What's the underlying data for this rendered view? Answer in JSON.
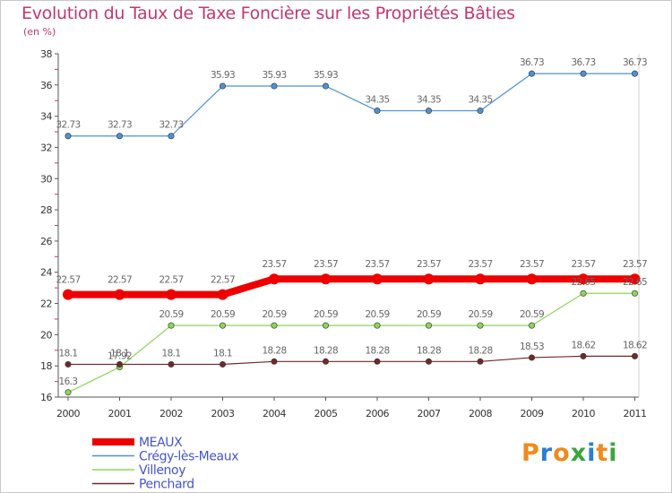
{
  "chart_data": {
    "type": "line",
    "title": "Evolution du Taux de Taxe Foncière sur les Propriétés Bâties",
    "subtitle": "(en %)",
    "x": [
      "2000",
      "2001",
      "2002",
      "2003",
      "2004",
      "2005",
      "2006",
      "2007",
      "2008",
      "2009",
      "2010",
      "2011"
    ],
    "ylim": [
      16,
      38
    ],
    "yticks": [
      16,
      18,
      20,
      22,
      24,
      26,
      28,
      30,
      32,
      34,
      36,
      38
    ],
    "grid": false,
    "legend": "bottom-left",
    "series": [
      {
        "name": "Crégy-lès-Meaux",
        "color": "#4f91d0",
        "labelColor": "#555555",
        "width": 1.2,
        "values": [
          32.73,
          32.73,
          32.73,
          35.93,
          35.93,
          35.93,
          34.35,
          34.35,
          34.35,
          36.73,
          36.73,
          36.73
        ],
        "labels": [
          "32.73",
          "32.73",
          "32.73",
          "35.93",
          "35.93",
          "35.93",
          "34.35",
          "34.35",
          "34.35",
          "36.73",
          "36.73",
          "36.73"
        ]
      },
      {
        "name": "Villenoy",
        "color": "#8cd45a",
        "labelColor": "#555555",
        "width": 1.2,
        "values": [
          16.3,
          17.92,
          20.59,
          20.59,
          20.59,
          20.59,
          20.59,
          20.59,
          20.59,
          20.59,
          22.65,
          22.65
        ],
        "labels": [
          "16.3",
          "17.92",
          "20.59",
          "20.59",
          "20.59",
          "20.59",
          "20.59",
          "20.59",
          "20.59",
          "20.59",
          "22.65",
          "22.65"
        ]
      },
      {
        "name": "Penchard",
        "color": "#6e2a2a",
        "labelColor": "#555555",
        "width": 1.2,
        "values": [
          18.1,
          18.1,
          18.1,
          18.1,
          18.28,
          18.28,
          18.28,
          18.28,
          18.28,
          18.53,
          18.62,
          18.62
        ],
        "labels": [
          "18.1",
          "18.1",
          "18.1",
          "18.1",
          "18.28",
          "18.28",
          "18.28",
          "18.28",
          "18.28",
          "18.53",
          "18.62",
          "18.62"
        ]
      },
      {
        "name": "MEAUX",
        "color": "#ee0000",
        "labelColor": "#555555",
        "width": 8,
        "values": [
          22.57,
          22.57,
          22.57,
          22.57,
          23.57,
          23.57,
          23.57,
          23.57,
          23.57,
          23.57,
          23.57,
          23.57
        ],
        "labels": [
          "22.57",
          "22.57",
          "22.57",
          "22.57",
          "23.57",
          "23.57",
          "23.57",
          "23.57",
          "23.57",
          "23.57",
          "23.57",
          "23.57"
        ]
      }
    ],
    "legend_order": [
      "MEAUX",
      "Crégy-lès-Meaux",
      "Villenoy",
      "Penchard"
    ]
  },
  "logo": {
    "text": "Proxiti",
    "colors": [
      "#f08a1c",
      "#2b7fd0",
      "#f08a1c",
      "#3aa63a",
      "#2b7fd0",
      "#f08a1c",
      "#3aa63a"
    ]
  }
}
